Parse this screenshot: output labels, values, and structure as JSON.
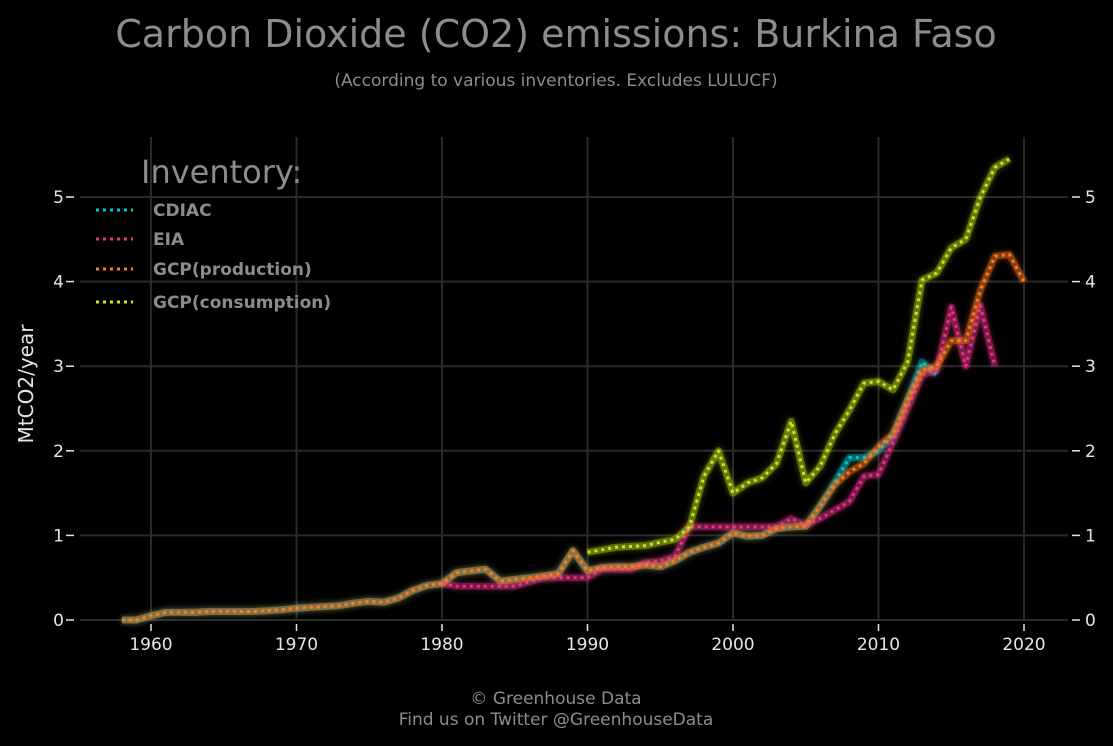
{
  "chart_data": {
    "type": "line",
    "title": "Carbon Dioxide (CO2) emissions: Burkina Faso",
    "subtitle": "(According to various inventories. Excludes LULUCF)",
    "ylabel": "MtCO2/year",
    "xlabel": "",
    "xlim": [
      1955,
      2023
    ],
    "ylim": [
      0,
      5.7
    ],
    "x_ticks": [
      "1960",
      "1970",
      "1980",
      "1990",
      "2000",
      "2010",
      "2020"
    ],
    "y_ticks": [
      "0",
      "1",
      "2",
      "3",
      "4",
      "5"
    ],
    "grid": true,
    "legend": {
      "title": "Inventory:",
      "position": "top-left"
    },
    "series": [
      {
        "name": "CDIAC",
        "color": "#00c8d2",
        "x": [
          1958,
          1959,
          1960,
          1961,
          1962,
          1963,
          1964,
          1965,
          1966,
          1967,
          1968,
          1969,
          1970,
          1971,
          1972,
          1973,
          1974,
          1975,
          1976,
          1977,
          1978,
          1979,
          1980,
          1981,
          1982,
          1983,
          1984,
          1985,
          1986,
          1987,
          1988,
          1989,
          1990,
          1991,
          1992,
          1993,
          1994,
          1995,
          1996,
          1997,
          1998,
          1999,
          2000,
          2001,
          2002,
          2003,
          2004,
          2005,
          2006,
          2007,
          2008,
          2009,
          2010,
          2011,
          2012,
          2013,
          2014
        ],
        "values": [
          0.0,
          0.0,
          0.05,
          0.09,
          0.09,
          0.09,
          0.1,
          0.1,
          0.1,
          0.1,
          0.11,
          0.12,
          0.14,
          0.15,
          0.16,
          0.17,
          0.2,
          0.22,
          0.21,
          0.26,
          0.35,
          0.41,
          0.43,
          0.56,
          0.58,
          0.6,
          0.46,
          0.48,
          0.5,
          0.52,
          0.55,
          0.82,
          0.58,
          0.62,
          0.63,
          0.63,
          0.65,
          0.63,
          0.7,
          0.8,
          0.86,
          0.91,
          1.03,
          0.99,
          1.0,
          1.08,
          1.1,
          1.11,
          1.35,
          1.63,
          1.92,
          1.92,
          2.0,
          2.18,
          2.6,
          3.05,
          2.9
        ]
      },
      {
        "name": "EIA",
        "color": "#e8308a",
        "x": [
          1980,
          1981,
          1982,
          1983,
          1984,
          1985,
          1986,
          1987,
          1988,
          1989,
          1990,
          1991,
          1992,
          1993,
          1994,
          1995,
          1996,
          1997,
          1998,
          1999,
          2000,
          2001,
          2002,
          2003,
          2004,
          2005,
          2006,
          2007,
          2008,
          2009,
          2010,
          2011,
          2012,
          2013,
          2014,
          2015,
          2016,
          2017,
          2018
        ],
        "values": [
          0.43,
          0.4,
          0.4,
          0.4,
          0.4,
          0.4,
          0.45,
          0.5,
          0.5,
          0.5,
          0.5,
          0.6,
          0.6,
          0.6,
          0.68,
          0.7,
          0.75,
          1.1,
          1.1,
          1.1,
          1.1,
          1.1,
          1.1,
          1.1,
          1.2,
          1.12,
          1.2,
          1.3,
          1.4,
          1.7,
          1.72,
          2.1,
          2.5,
          2.9,
          2.95,
          3.7,
          3.0,
          3.72,
          3.0
        ]
      },
      {
        "name": "GCP(production)",
        "color": "#ff7a1a",
        "x": [
          1958,
          1959,
          1960,
          1961,
          1962,
          1963,
          1964,
          1965,
          1966,
          1967,
          1968,
          1969,
          1970,
          1971,
          1972,
          1973,
          1974,
          1975,
          1976,
          1977,
          1978,
          1979,
          1980,
          1981,
          1982,
          1983,
          1984,
          1985,
          1986,
          1987,
          1988,
          1989,
          1990,
          1991,
          1992,
          1993,
          1994,
          1995,
          1996,
          1997,
          1998,
          1999,
          2000,
          2001,
          2002,
          2003,
          2004,
          2005,
          2006,
          2007,
          2008,
          2009,
          2010,
          2011,
          2012,
          2013,
          2014,
          2015,
          2016,
          2017,
          2018,
          2019,
          2020
        ],
        "values": [
          0.0,
          0.0,
          0.05,
          0.09,
          0.09,
          0.09,
          0.1,
          0.1,
          0.1,
          0.1,
          0.11,
          0.12,
          0.14,
          0.15,
          0.16,
          0.17,
          0.2,
          0.22,
          0.21,
          0.26,
          0.35,
          0.41,
          0.43,
          0.56,
          0.58,
          0.6,
          0.46,
          0.48,
          0.5,
          0.52,
          0.55,
          0.82,
          0.58,
          0.62,
          0.63,
          0.63,
          0.65,
          0.63,
          0.7,
          0.8,
          0.86,
          0.91,
          1.03,
          0.99,
          1.0,
          1.08,
          1.1,
          1.11,
          1.35,
          1.6,
          1.75,
          1.85,
          2.05,
          2.2,
          2.6,
          2.95,
          3.0,
          3.3,
          3.3,
          3.9,
          4.3,
          4.32,
          4.0
        ]
      },
      {
        "name": "GCP(consumption)",
        "color": "#c8e619",
        "x": [
          1990,
          1991,
          1992,
          1993,
          1994,
          1995,
          1996,
          1997,
          1998,
          1999,
          2000,
          2001,
          2002,
          2003,
          2004,
          2005,
          2006,
          2007,
          2008,
          2009,
          2010,
          2011,
          2012,
          2013,
          2014,
          2015,
          2016,
          2017,
          2018,
          2019
        ],
        "values": [
          0.8,
          0.83,
          0.86,
          0.87,
          0.88,
          0.92,
          0.95,
          1.1,
          1.7,
          2.0,
          1.5,
          1.62,
          1.68,
          1.85,
          2.35,
          1.62,
          1.82,
          2.2,
          2.48,
          2.8,
          2.82,
          2.72,
          3.05,
          4.02,
          4.1,
          4.4,
          4.5,
          5.0,
          5.35,
          5.45
        ]
      }
    ]
  },
  "footer": {
    "line1": "© Greenhouse Data",
    "line2": "Find us on Twitter @GreenhouseData"
  }
}
